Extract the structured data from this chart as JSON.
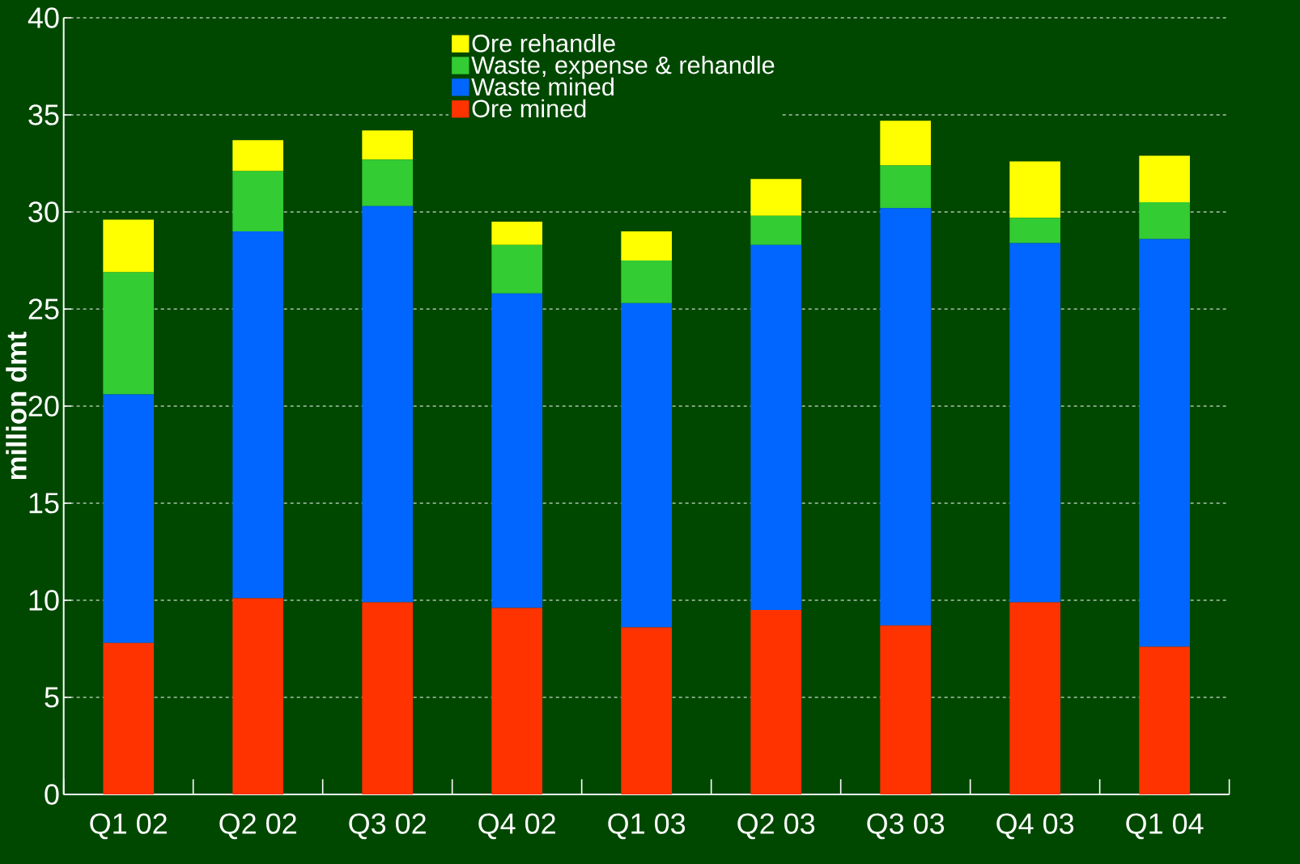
{
  "chart_data": {
    "type": "bar",
    "stacked": true,
    "ylabel": "million dmt",
    "categories": [
      "Q1 02",
      "Q2 02",
      "Q3 02",
      "Q4 02",
      "Q1 03",
      "Q2 03",
      "Q3 03",
      "Q4 03",
      "Q1 04"
    ],
    "series": [
      {
        "name": "Ore mined",
        "color": "#ff3300",
        "values": [
          7.8,
          10.1,
          9.9,
          9.6,
          8.6,
          9.5,
          8.7,
          9.9,
          7.6
        ]
      },
      {
        "name": "Waste mined",
        "color": "#0066ff",
        "values": [
          12.8,
          18.9,
          20.4,
          16.2,
          16.7,
          18.8,
          21.5,
          18.5,
          21.0
        ]
      },
      {
        "name": "Waste, expense & rehandle",
        "color": "#33cc33",
        "values": [
          6.3,
          3.1,
          2.4,
          2.5,
          2.2,
          1.5,
          2.2,
          1.3,
          1.9
        ]
      },
      {
        "name": "Ore rehandle",
        "color": "#ffff00",
        "values": [
          2.7,
          1.6,
          1.5,
          1.2,
          1.5,
          1.9,
          2.3,
          2.9,
          2.4
        ]
      }
    ],
    "ylim": [
      0,
      40
    ],
    "yticks": [
      0,
      5,
      10,
      15,
      20,
      25,
      30,
      35,
      40
    ],
    "grid": "y",
    "legend": "top"
  }
}
